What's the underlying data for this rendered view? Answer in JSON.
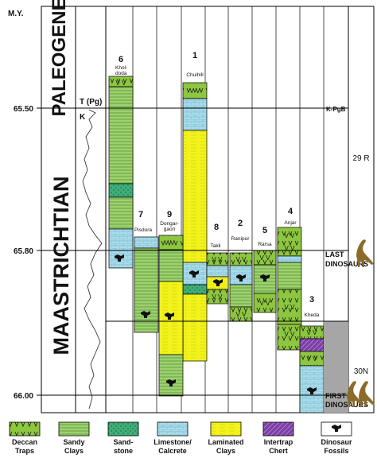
{
  "axis": {
    "title": "M.Y.",
    "ticks": [
      "65.50",
      "65.80",
      "66.00"
    ]
  },
  "periods": {
    "paleogene": "PALEOGENE",
    "maastrichtian": "MAASTRICHTIAN",
    "tpg": "T (Pg)",
    "k": "K"
  },
  "magnetochrons": [
    "29 R",
    "30N"
  ],
  "boundaries": {
    "kpg": "K-PgB",
    "last_dino_1": "LAST",
    "last_dino_2": "DINOSAURS",
    "first_dino_1": "FIRST",
    "first_dino_2": "DINOSAURS"
  },
  "localities": [
    {
      "num": "6",
      "name1": "Khol-",
      "name2": "doda"
    },
    {
      "num": "1",
      "name1": "Chuihill",
      "name2": ""
    },
    {
      "num": "7",
      "name1": "Pisdura",
      "name2": ""
    },
    {
      "num": "9",
      "name1": "Dongar-",
      "name2": "gaon"
    },
    {
      "num": "8",
      "name1": "Takli",
      "name2": ""
    },
    {
      "num": "2",
      "name1": "Ranipur",
      "name2": ""
    },
    {
      "num": "5",
      "name1": "Rarsa",
      "name2": ""
    },
    {
      "num": "4",
      "name1": "Anjar",
      "name2": ""
    },
    {
      "num": "3",
      "name1": "Kheda",
      "name2": ""
    }
  ],
  "legend": [
    {
      "label1": "Deccan",
      "label2": "Traps",
      "color": "#8dc63f"
    },
    {
      "label1": "Sandy",
      "label2": "Clays",
      "color": "#9ed06f"
    },
    {
      "label1": "Sand-",
      "label2": "stone",
      "color": "#3fae7a"
    },
    {
      "label1": "Limestone/",
      "label2": "Calcrete",
      "color": "#a9dcea"
    },
    {
      "label1": "Laminated",
      "label2": "Clays",
      "color": "#f2f21c"
    },
    {
      "label1": "Intertrap",
      "label2": "Chert",
      "color": "#7d3fa6"
    },
    {
      "label1": "Dinosaur",
      "label2": "Fossils",
      "color": "#ffffff"
    }
  ]
}
